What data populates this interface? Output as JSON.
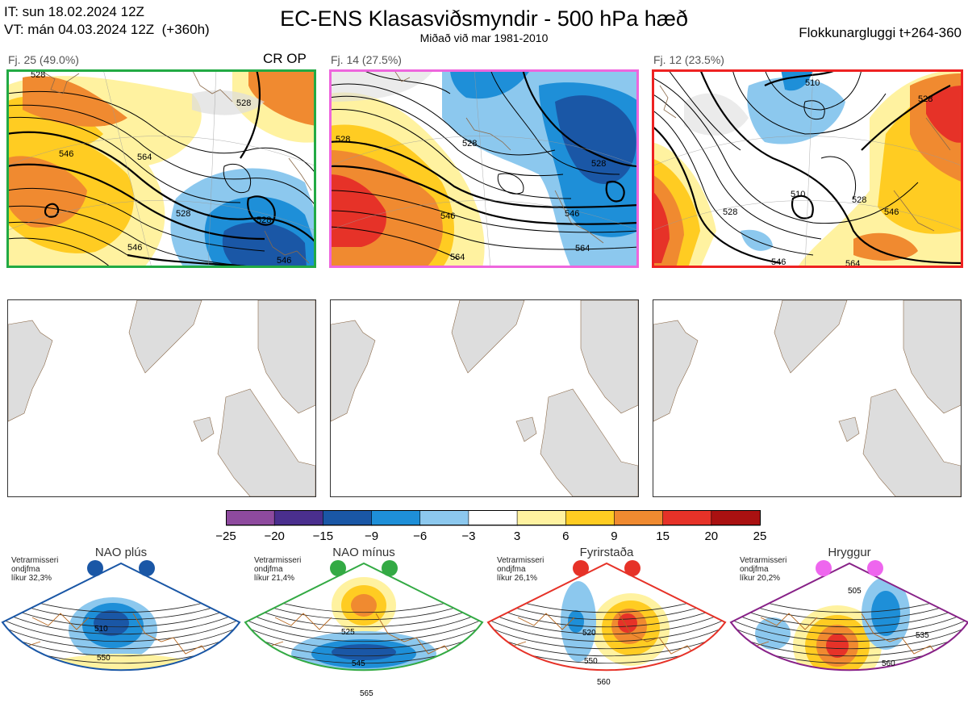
{
  "header": {
    "it_line": "IT: sun 18.02.2024 12Z",
    "vt_line": "VT: mán 04.03.2024 12Z  (+360h)",
    "title": "EC-ENS Klasasviðsmyndir - 500 hPa hæð",
    "subtitle": "Miðað við mar 1981-2010",
    "window": "Flokkunargluggi t+264-360"
  },
  "clusters": [
    {
      "label": "Fj. 25 (49.0%)",
      "frame_color": "#22aa44",
      "marker": "CR OP",
      "contour_labels": [
        "528",
        "546",
        "528",
        "564",
        "546",
        "528",
        "546",
        "528"
      ]
    },
    {
      "label": "Fj. 14 (27.5%)",
      "frame_color": "#ee66dd",
      "contour_labels": [
        "528",
        "528",
        "546",
        "564",
        "546",
        "564",
        "528"
      ]
    },
    {
      "label": "Fj. 12 (23.5%)",
      "frame_color": "#ee2222",
      "contour_labels": [
        "510",
        "528",
        "510",
        "528",
        "546",
        "546",
        "564",
        "528"
      ]
    }
  ],
  "colorbar": {
    "ticks": [
      "−25",
      "−20",
      "−15",
      "−9",
      "−6",
      "−3",
      "3",
      "6",
      "9",
      "15",
      "20",
      "25"
    ],
    "colors": [
      "#8e4a9e",
      "#4a2f8e",
      "#1a57a6",
      "#1e8fd8",
      "#8cc8ee",
      "#ffffff",
      "#fff2a0",
      "#ffcc22",
      "#f08a30",
      "#e63228",
      "#aa1111"
    ]
  },
  "regimes": [
    {
      "name": "NAO plús",
      "note": [
        "Vetrarmisseri",
        "ondjfma",
        "líkur 32,3%"
      ],
      "frame_color": "#1a57a6",
      "dot_color": "#1a57a6",
      "labels": [
        "510",
        "550"
      ]
    },
    {
      "name": "NAO mínus",
      "note": [
        "Vetrarmisseri",
        "ondjfma",
        "líkur 21,4%"
      ],
      "frame_color": "#33aa44",
      "dot_color": "#33aa44",
      "labels": [
        "525",
        "545",
        "565"
      ]
    },
    {
      "name": "Fyrirstaða",
      "note": [
        "Vetrarmisseri",
        "ondjfma",
        "líkur 26,1%"
      ],
      "frame_color": "#e63228",
      "dot_color": "#e63228",
      "labels": [
        "520",
        "550",
        "560"
      ]
    },
    {
      "name": "Hryggur",
      "note": [
        "Vetrarmisseri",
        "ondjfma",
        "líkur 20,2%"
      ],
      "frame_color": "#882288",
      "dot_color": "#ee66ee",
      "labels": [
        "505",
        "535",
        "560"
      ]
    }
  ]
}
